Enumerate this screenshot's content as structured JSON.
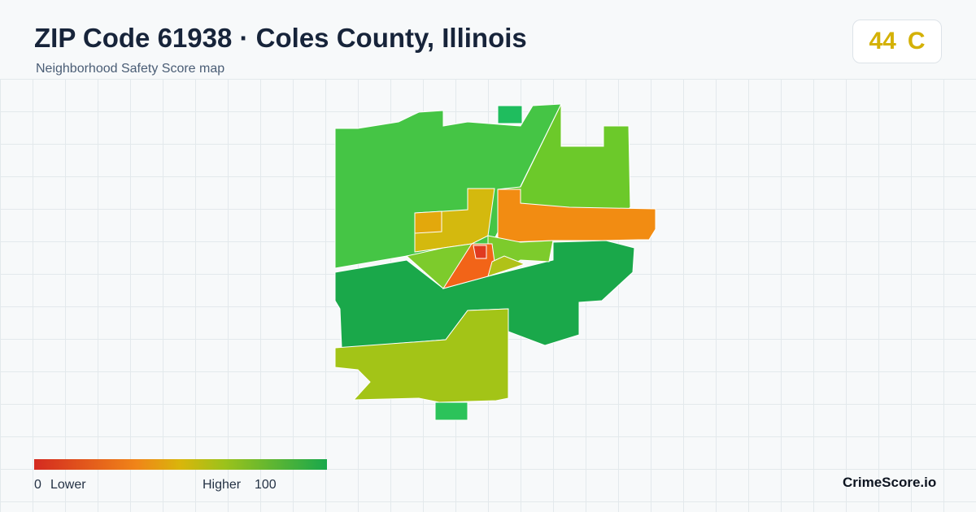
{
  "header": {
    "title": "ZIP Code 61938 · Coles County, Illinois",
    "subtitle": "Neighborhood Safety Score map"
  },
  "score": {
    "value": 44,
    "grade": "C"
  },
  "legend": {
    "min": 0,
    "min_label": "Lower",
    "max_label": "Higher",
    "max": 100
  },
  "brand": "CrimeScore.io"
}
